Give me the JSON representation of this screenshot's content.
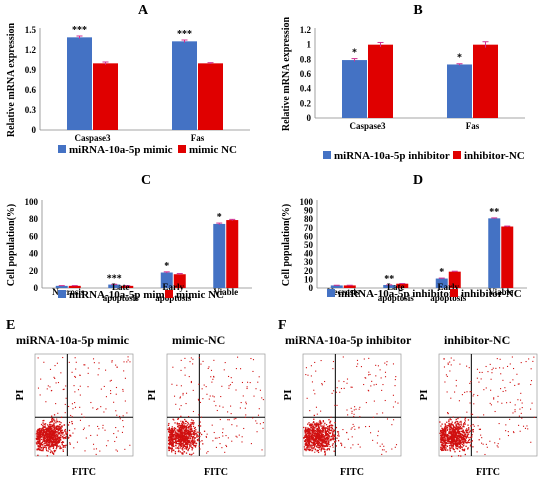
{
  "colors": {
    "series_blue": "#4472C4",
    "series_red": "#E00000",
    "error_bar": "#D03090",
    "dot_red": "#D01010"
  },
  "chart_data": [
    {
      "id": "A",
      "type": "bar",
      "panel_label": "A",
      "categories": [
        "Caspase3",
        "Fas"
      ],
      "ylabel": "Relative mRNA expression",
      "ylim": [
        0,
        1.5
      ],
      "yticks": [
        "0",
        "0.3",
        "0.6",
        "0.9",
        "1.2",
        "1.5"
      ],
      "series": [
        {
          "name": "miRNA-10a-5p mimic",
          "values": [
            1.39,
            1.33
          ],
          "errors": [
            0.02,
            0.02
          ]
        },
        {
          "name": "mimic NC",
          "values": [
            1.0,
            1.0
          ],
          "errors": [
            0.02,
            0.01
          ]
        }
      ],
      "annotations": [
        "***",
        "***"
      ],
      "legend": "bottom"
    },
    {
      "id": "B",
      "type": "bar",
      "panel_label": "B",
      "categories": [
        "Caspase3",
        "Fas"
      ],
      "ylabel": "Relative mRNA expression",
      "ylim": [
        0,
        1.2
      ],
      "yticks": [
        "0",
        "0.2",
        "0.4",
        "0.6",
        "0.8",
        "1",
        "1.2"
      ],
      "series": [
        {
          "name": "miRNA-10a-5p inhibitor",
          "values": [
            0.79,
            0.73
          ],
          "errors": [
            0.02,
            0.01
          ]
        },
        {
          "name": "inhibitor-NC",
          "values": [
            1.0,
            1.0
          ],
          "errors": [
            0.03,
            0.04
          ]
        }
      ],
      "annotations": [
        "*",
        "*"
      ],
      "legend": "bottom"
    },
    {
      "id": "C",
      "type": "bar",
      "panel_label": "C",
      "categories": [
        "Necrosis",
        "Late apoptosis",
        "Early apoptosis",
        "Viable"
      ],
      "ylabel": "Cell population(%)",
      "ylim": [
        0,
        100
      ],
      "yticks": [
        "0",
        "20",
        "40",
        "60",
        "80",
        "100"
      ],
      "series": [
        {
          "name": "miRNA-10a-5p mimic",
          "values": [
            2.5,
            4.0,
            18.0,
            74.5
          ],
          "errors": [
            0.3,
            0.3,
            0.8,
            1.0
          ]
        },
        {
          "name": "mimic NC",
          "values": [
            2.5,
            2.5,
            16.0,
            79.0
          ],
          "errors": [
            0.3,
            0.3,
            0.8,
            0.8
          ]
        }
      ],
      "annotations": [
        "",
        "***",
        "*",
        "*"
      ],
      "legend": "bottom"
    },
    {
      "id": "D",
      "type": "bar",
      "panel_label": "D",
      "categories": [
        "Necrosis",
        "Late apoptosis",
        "Early apoptosis",
        "Viable"
      ],
      "ylabel": "Cell population(%)",
      "ylim": [
        0,
        100
      ],
      "yticks": [
        "0",
        "10",
        "20",
        "30",
        "40",
        "50",
        "60",
        "70",
        "80",
        "90",
        "100"
      ],
      "series": [
        {
          "name": "miRNA-10a-5p inhibitor",
          "values": [
            3.0,
            3.5,
            11.0,
            81.0
          ],
          "errors": [
            0.2,
            0.2,
            0.5,
            0.5
          ]
        },
        {
          "name": "inhibitor-NC",
          "values": [
            3.0,
            5.0,
            19.0,
            71.5
          ],
          "errors": [
            0.2,
            0.2,
            0.5,
            0.5
          ]
        }
      ],
      "annotations": [
        "",
        "**",
        "*",
        "**"
      ],
      "legend": "bottom"
    }
  ],
  "flow": {
    "panel_E_label": "E",
    "panel_F_label": "F",
    "plots": [
      {
        "title": "miRNA-10a-5p mimic",
        "xlabel": "FITC",
        "ylabel": "PI"
      },
      {
        "title": "mimic-NC",
        "xlabel": "FITC",
        "ylabel": "PI"
      },
      {
        "title": "miRNA-10a-5p inhibitor",
        "xlabel": "FITC",
        "ylabel": "PI"
      },
      {
        "title": "inhibitor-NC",
        "xlabel": "FITC",
        "ylabel": "PI"
      }
    ]
  }
}
